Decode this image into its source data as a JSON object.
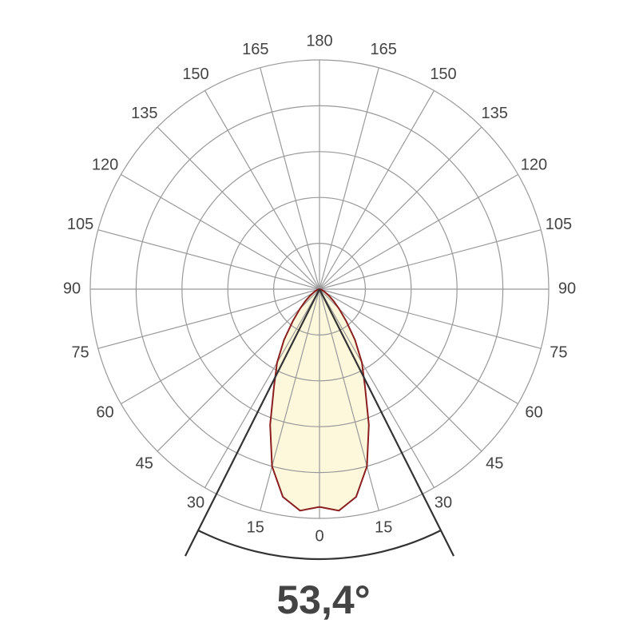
{
  "chart_data": {
    "type": "polar",
    "x": [
      -90,
      -85,
      -80,
      -75,
      -70,
      -65,
      -60,
      -55,
      -50,
      -45,
      -40,
      -35,
      -30,
      -25,
      -20,
      -15,
      -10,
      -5,
      0,
      5,
      10,
      15,
      20,
      25,
      30,
      35,
      40,
      45,
      50,
      55,
      60,
      65,
      70,
      75,
      80,
      85,
      90
    ],
    "values": [
      0,
      0,
      0,
      1,
      1,
      2,
      3,
      5,
      8,
      12,
      18,
      27,
      37,
      47,
      63,
      80,
      92,
      97,
      95,
      97,
      92,
      80,
      63,
      47,
      37,
      27,
      18,
      12,
      8,
      5,
      3,
      2,
      1,
      1,
      0,
      0,
      0
    ],
    "color": "#8b1e1e",
    "fill": "#fdf8dc",
    "rlim": [
      0,
      100
    ],
    "rticks": [
      20,
      40,
      60,
      80,
      100
    ],
    "xticks": [
      0,
      15,
      30,
      45,
      60,
      75,
      90,
      105,
      120,
      135,
      150,
      165,
      180,
      {
        "value": -15,
        "label": "15"
      },
      {
        "value": -30,
        "label": "30"
      },
      {
        "value": -45,
        "label": "45"
      },
      {
        "value": -60,
        "label": "60"
      },
      {
        "value": -75,
        "label": "75"
      },
      {
        "value": -90,
        "label": "90"
      },
      {
        "value": -105,
        "label": "105"
      },
      {
        "value": -120,
        "label": "120"
      },
      {
        "value": -135,
        "label": "135"
      },
      {
        "value": -150,
        "label": "150"
      },
      {
        "value": -165,
        "label": "165"
      }
    ],
    "beam_angle": {
      "value": 53.4,
      "label": "53,4°"
    }
  }
}
